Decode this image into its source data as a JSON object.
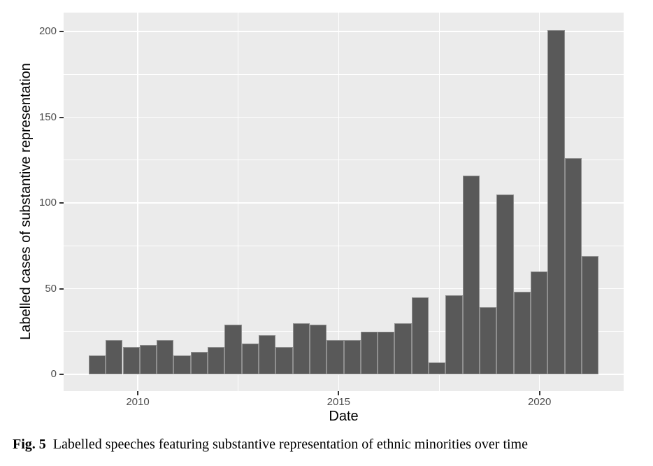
{
  "figure": {
    "caption_label": "Fig. 5",
    "caption_text": "Labelled speeches featuring substantive representation of ethnic minorities over time"
  },
  "chart_data": {
    "type": "bar",
    "subtype": "histogram",
    "title": "",
    "xlabel": "Date",
    "ylabel": "Labelled cases of substantive representation",
    "x_tick_labels": [
      "2010",
      "2015",
      "2020"
    ],
    "x_tick_years": [
      2010,
      2015,
      2020
    ],
    "x_minor_years": [
      2012.5,
      2017.5
    ],
    "y_ticks": [
      0,
      50,
      100,
      150,
      200
    ],
    "y_minor_ticks": [
      25,
      75,
      125,
      175
    ],
    "ylim": [
      -10,
      211
    ],
    "xlim_years": [
      2008.14,
      2022.09
    ],
    "grid": true,
    "legend": "none",
    "bins": {
      "start_year": 2008.78,
      "bin_width_years": 0.423,
      "values": [
        11,
        20,
        16,
        17,
        20,
        11,
        13,
        16,
        29,
        18,
        23,
        16,
        30,
        29,
        20,
        20,
        25,
        25,
        30,
        45,
        7,
        46,
        116,
        39,
        105,
        48,
        60,
        201,
        126,
        69
      ]
    },
    "colors": {
      "bar_fill": "#595959",
      "bar_border": "#8f8f8f",
      "panel_background": "#EBEBEB",
      "gridline": "#FFFFFF",
      "tick_label": "#4D4D4D",
      "tick_mark": "#333333",
      "axis_title": "#000000",
      "page_background": "#FFFFFF"
    }
  }
}
